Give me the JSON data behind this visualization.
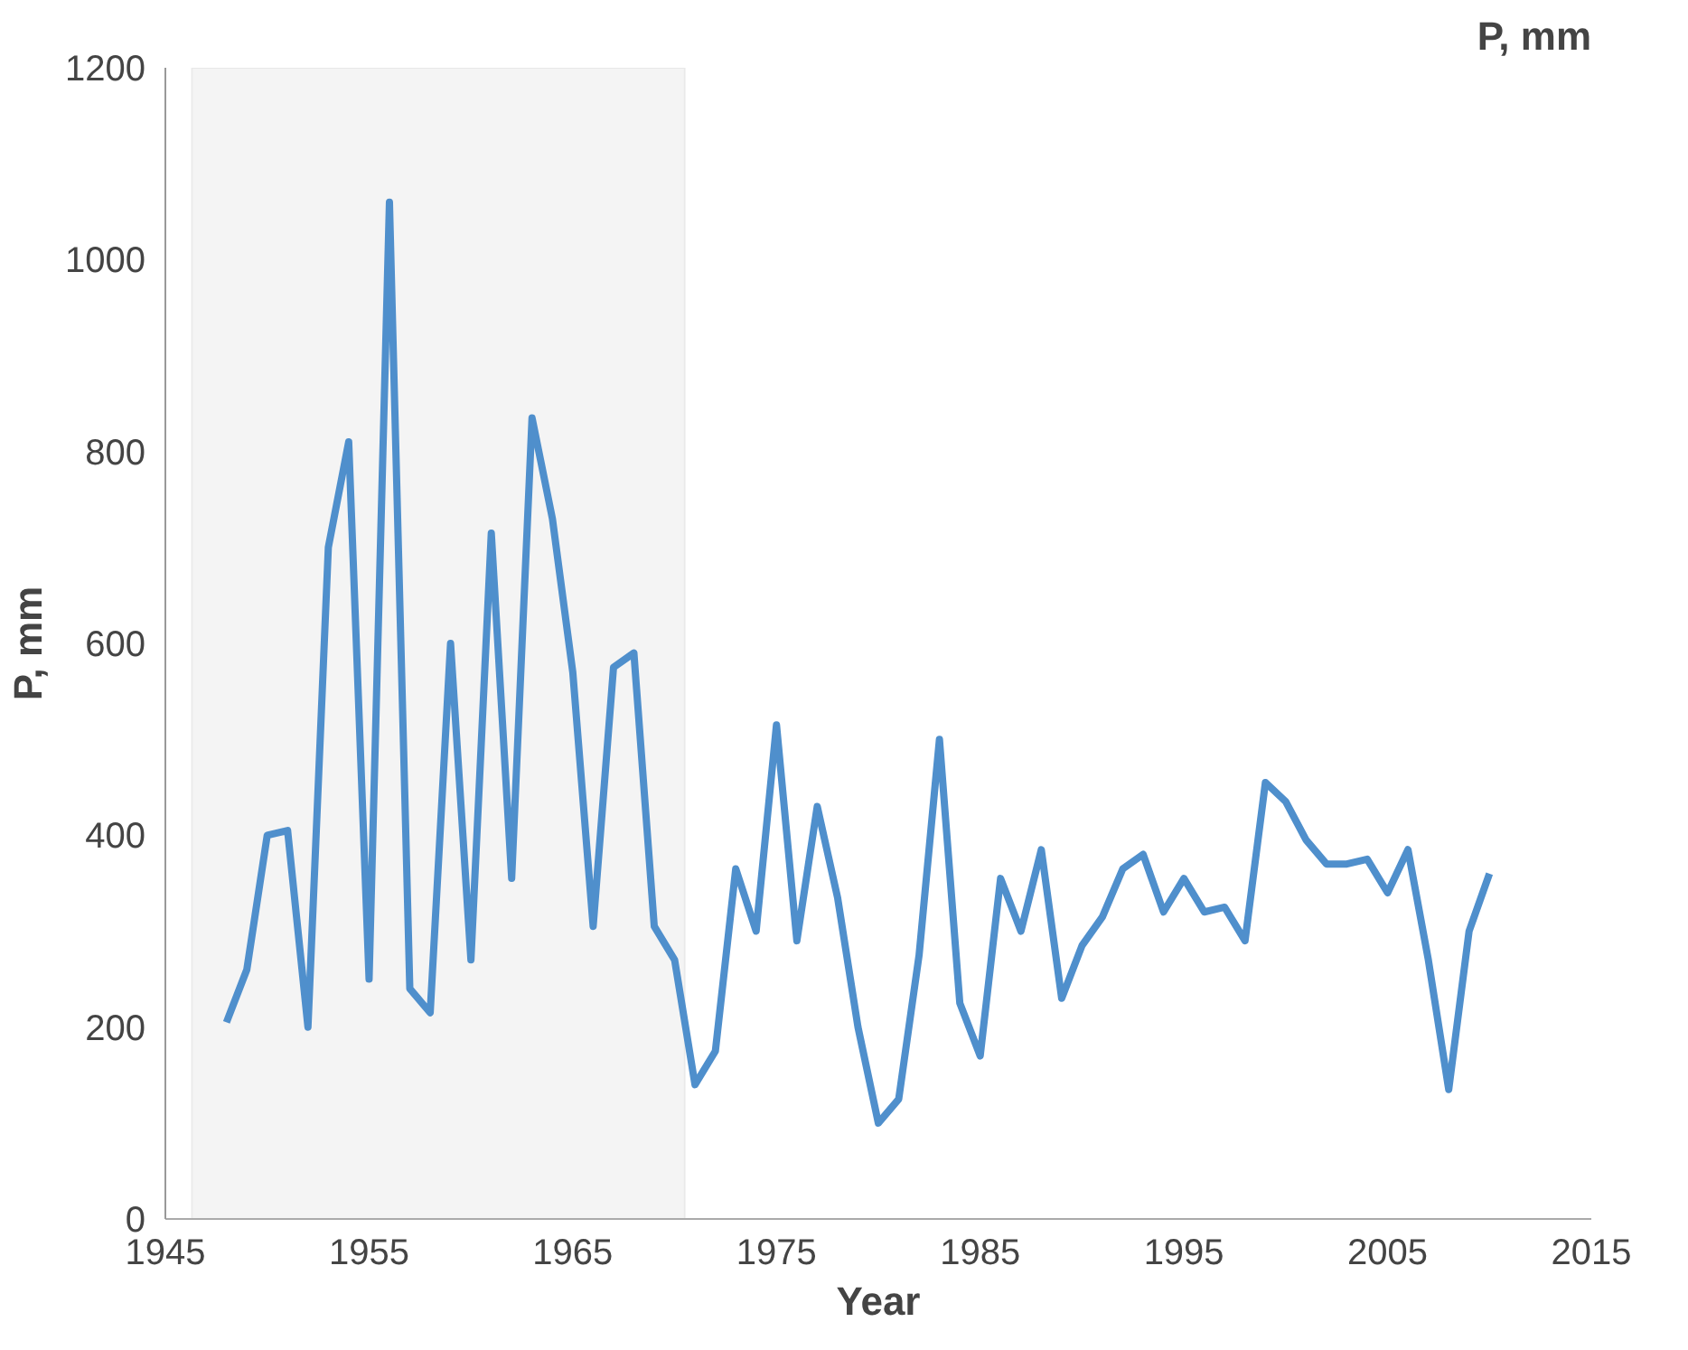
{
  "chart_data": {
    "type": "line",
    "title": "P, mm",
    "xlabel": "Year",
    "ylabel": "P, mm",
    "x": [
      1948,
      1949,
      1950,
      1951,
      1952,
      1953,
      1954,
      1955,
      1956,
      1957,
      1958,
      1959,
      1960,
      1961,
      1962,
      1963,
      1964,
      1965,
      1966,
      1967,
      1968,
      1969,
      1970,
      1971,
      1972,
      1973,
      1974,
      1975,
      1976,
      1977,
      1978,
      1979,
      1980,
      1981,
      1982,
      1983,
      1984,
      1985,
      1986,
      1987,
      1988,
      1989,
      1990,
      1991,
      1992,
      1993,
      1994,
      1995,
      1996,
      1997,
      1998,
      1999,
      2000,
      2001,
      2002,
      2003,
      2004,
      2005,
      2006,
      2007,
      2008,
      2009,
      2010
    ],
    "series": [
      {
        "color": "#4f8fcc",
        "values": [
          205,
          260,
          400,
          405,
          200,
          700,
          810,
          250,
          1060,
          240,
          215,
          600,
          270,
          715,
          355,
          835,
          730,
          570,
          305,
          575,
          590,
          305,
          270,
          140,
          175,
          365,
          300,
          515,
          290,
          430,
          335,
          200,
          100,
          125,
          275,
          500,
          225,
          170,
          355,
          300,
          385,
          230,
          285,
          315,
          365,
          380,
          320,
          355,
          320,
          325,
          290,
          455,
          435,
          395,
          370,
          370,
          375,
          340,
          385,
          270,
          135,
          300,
          360
        ]
      }
    ],
    "xlim": [
      1945,
      2015
    ],
    "xticks": [
      1945,
      1955,
      1965,
      1975,
      1985,
      1995,
      2005,
      2015
    ],
    "ylim": [
      0,
      1200
    ],
    "yticks": [
      0,
      200,
      400,
      600,
      800,
      1000,
      1200
    ],
    "bands": [
      {
        "axis": "x",
        "from": 1946.3,
        "to": 1970.5,
        "color": "#f4f4f4"
      }
    ],
    "grid": false,
    "marker": "none",
    "line_style": "solid"
  }
}
